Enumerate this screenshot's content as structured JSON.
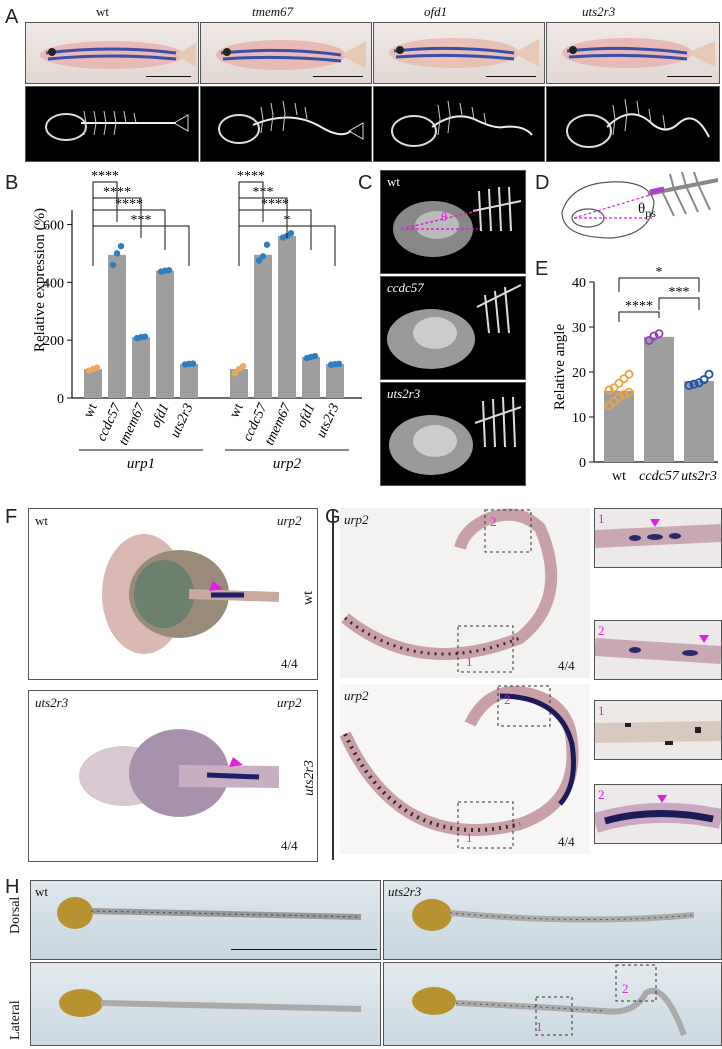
{
  "panels": {
    "A": "A",
    "B": "B",
    "C": "C",
    "D": "D",
    "E": "E",
    "F": "F",
    "G": "G",
    "H": "H"
  },
  "panelA": {
    "genotypes": [
      "wt",
      "tmem67",
      "ofd1",
      "uts2r3"
    ]
  },
  "panelB": {
    "groups": [
      "urp1",
      "urp2"
    ],
    "significance": {
      "urp1": [
        "***",
        "****",
        "****",
        "****"
      ],
      "urp2": [
        "*",
        "****",
        "***",
        "****"
      ]
    }
  },
  "panelC": {
    "labels": [
      "wt",
      "ccdc57",
      "uts2r3"
    ],
    "angle_symbol": "θ"
  },
  "panelD": {
    "theta": "θ",
    "sub": "ps"
  },
  "panelE": {
    "significance": [
      "*",
      "***",
      "****"
    ]
  },
  "panelF": {
    "top": {
      "genotype": "wt",
      "gene": "urp2",
      "count": "4/4"
    },
    "bottom": {
      "genotype": "uts2r3",
      "gene": "urp2",
      "count": "4/4"
    }
  },
  "panelG": {
    "row_labels": [
      "wt",
      "uts2r3"
    ],
    "gene": "urp2",
    "count": "4/4",
    "box1": "1",
    "box2": "2",
    "insets": [
      "1",
      "2",
      "1",
      "2"
    ]
  },
  "panelH": {
    "row_labels": [
      "Dorsal",
      "Lateral"
    ],
    "genotypes": [
      "wt",
      "uts2r3"
    ],
    "box1": "1",
    "box2": "2"
  },
  "chart_data": [
    {
      "type": "bar",
      "panel": "B",
      "ylabel": "Relative expression (%)",
      "ylim": [
        0,
        650
      ],
      "yticks": [
        0,
        200,
        400,
        600
      ],
      "groups": [
        {
          "name": "urp1",
          "categories": [
            "wt",
            "ccdc57",
            "tmem67",
            "ofd1",
            "uts2r3"
          ],
          "values": [
            100,
            495,
            210,
            440,
            118
          ],
          "points": [
            [
              95,
              100,
              105
            ],
            [
              460,
              500,
              525
            ],
            [
              207,
              210,
              212
            ],
            [
              437,
              440,
              442
            ],
            [
              116,
              118,
              119
            ]
          ]
        },
        {
          "name": "urp2",
          "categories": [
            "wt",
            "ccdc57",
            "tmem67",
            "ofd1",
            "uts2r3"
          ],
          "values": [
            100,
            495,
            560,
            142,
            117
          ],
          "points": [
            [
              85,
              100,
              110
            ],
            [
              475,
              490,
              530
            ],
            [
              555,
              560,
              570
            ],
            [
              138,
              142,
              145
            ],
            [
              115,
              117,
              118
            ]
          ]
        }
      ]
    },
    {
      "type": "bar",
      "panel": "E",
      "ylabel": "Relative angle",
      "ylim": [
        0,
        40
      ],
      "yticks": [
        0,
        10,
        20,
        30,
        40
      ],
      "categories": [
        "wt",
        "ccdc57",
        "uts2r3"
      ],
      "values": [
        15.8,
        27.8,
        18.0
      ],
      "points": [
        [
          12.5,
          13.5,
          14.5,
          15.0,
          15.5,
          16.0,
          16.5,
          17.5,
          18.5,
          19.5
        ],
        [
          27.0,
          28.0,
          28.5
        ],
        [
          17.0,
          17.3,
          17.6,
          18.3,
          19.5
        ]
      ]
    }
  ]
}
